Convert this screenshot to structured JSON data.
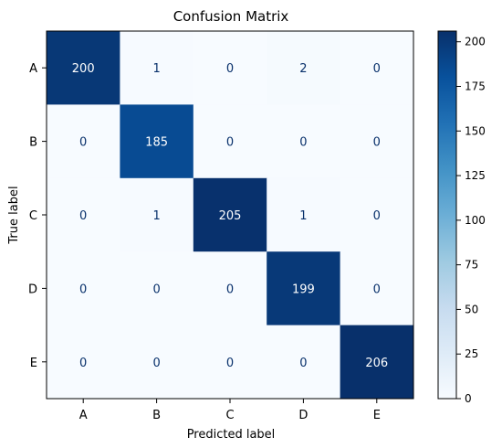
{
  "chart_data": {
    "type": "heatmap",
    "title": "Confusion Matrix",
    "xlabel": "Predicted label",
    "ylabel": "True label",
    "x_categories": [
      "A",
      "B",
      "C",
      "D",
      "E"
    ],
    "y_categories": [
      "A",
      "B",
      "C",
      "D",
      "E"
    ],
    "values": [
      [
        200,
        1,
        0,
        2,
        0
      ],
      [
        0,
        185,
        0,
        0,
        0
      ],
      [
        0,
        1,
        205,
        1,
        0
      ],
      [
        0,
        0,
        0,
        199,
        0
      ],
      [
        0,
        0,
        0,
        0,
        206
      ]
    ],
    "colorbar": {
      "range": [
        0,
        206
      ],
      "ticks": [
        "0",
        "25",
        "50",
        "75",
        "100",
        "125",
        "150",
        "175",
        "200"
      ]
    },
    "colormap": "Blues",
    "colors": {
      "low": "#f7fbff",
      "high": "#08306b",
      "text_on_light": "#08306b",
      "text_on_dark": "#ffffff"
    }
  }
}
